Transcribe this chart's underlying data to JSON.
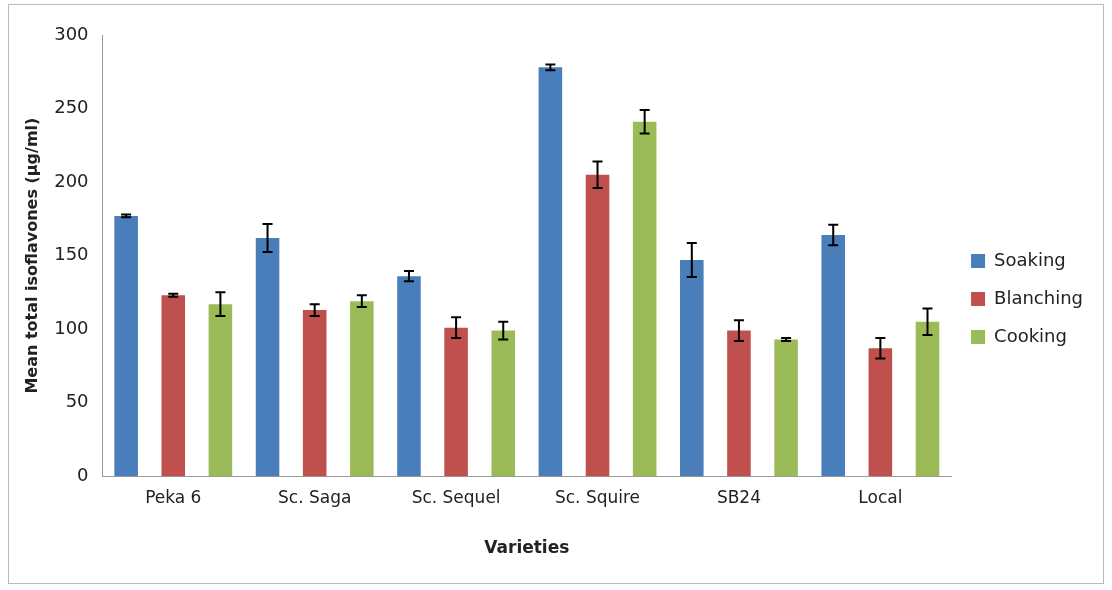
{
  "chart_data": {
    "type": "bar",
    "xlabel": "Varieties",
    "ylabel": "Mean total isoflavones (µg/ml)",
    "categories": [
      "Peka 6",
      "Sc. Saga",
      "Sc. Sequel",
      "Sc. Squire",
      "SB24",
      "Local"
    ],
    "series": [
      {
        "name": "Soaking",
        "color": "#4a7ebb",
        "values": [
          177,
          162,
          136,
          278,
          147,
          164
        ],
        "errors": [
          1,
          9.5,
          3.5,
          2,
          11.5,
          7
        ]
      },
      {
        "name": "Blanching",
        "color": "#c0504d",
        "values": [
          123,
          113,
          101,
          205,
          99,
          87
        ],
        "errors": [
          1,
          4,
          7,
          9,
          7,
          7
        ]
      },
      {
        "name": "Cooking",
        "color": "#9bbb59",
        "values": [
          117,
          119,
          99,
          241,
          93,
          105
        ],
        "errors": [
          8,
          4,
          6,
          8,
          1,
          9
        ]
      }
    ],
    "ylim": [
      0,
      300
    ],
    "yticks": [
      0,
      50,
      100,
      150,
      200,
      250,
      300
    ],
    "grid": false,
    "legend": "right"
  }
}
